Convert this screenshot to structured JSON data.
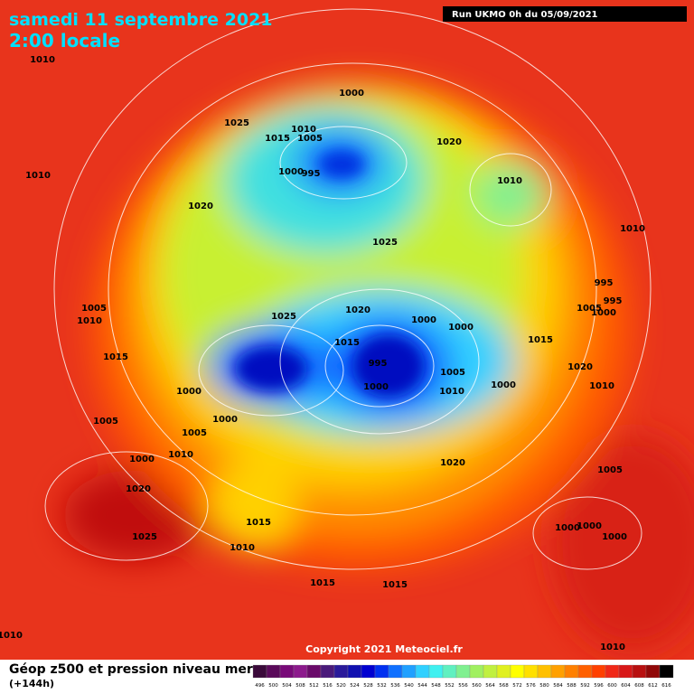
{
  "header": {
    "date": "samedi 11 septembre 2021",
    "time": "2:00 locale",
    "run": "Run UKMO 0h du 05/09/2021"
  },
  "isobar_labels": [
    1010,
    1000,
    1025,
    1010,
    1015,
    1005,
    1020,
    1000,
    995,
    1010,
    1010,
    1020,
    1025,
    1010,
    995,
    995,
    1005,
    1000,
    1005,
    1010,
    1025,
    1020,
    1000,
    1000,
    1015,
    1015,
    1015,
    995,
    1005,
    1020,
    1000,
    1000,
    1010,
    1000,
    1010,
    1000,
    1005,
    1005,
    1000,
    1010,
    1020,
    1005,
    1020,
    1015,
    1000,
    1000,
    1000,
    1025,
    1010,
    1015,
    1015,
    1010,
    1010
  ],
  "copyright": "Copyright 2021 Meteociel.fr",
  "legend": {
    "title": "Géop z500 et pression niveau mer",
    "subtitle": "(+144h)",
    "scale": [
      496,
      500,
      504,
      508,
      512,
      516,
      520,
      524,
      528,
      532,
      536,
      540,
      544,
      548,
      552,
      556,
      560,
      564,
      568,
      572,
      576,
      580,
      584,
      588,
      592,
      596,
      600,
      604,
      608,
      612,
      616
    ],
    "colors": [
      "#3a0a3a",
      "#5a0a5a",
      "#780a78",
      "#8c1a8c",
      "#6a0a6a",
      "#4a1a7a",
      "#2a1a9a",
      "#1010b0",
      "#0000d0",
      "#0030f0",
      "#1070ff",
      "#20a0ff",
      "#30d0ff",
      "#40f0f0",
      "#60f0c0",
      "#80f090",
      "#a0f060",
      "#c0f040",
      "#e0f020",
      "#ffff00",
      "#ffe000",
      "#ffc000",
      "#ffa000",
      "#ff8000",
      "#ff6000",
      "#ff4000",
      "#f02818",
      "#d81818",
      "#b81010",
      "#900808",
      "#000000"
    ]
  }
}
